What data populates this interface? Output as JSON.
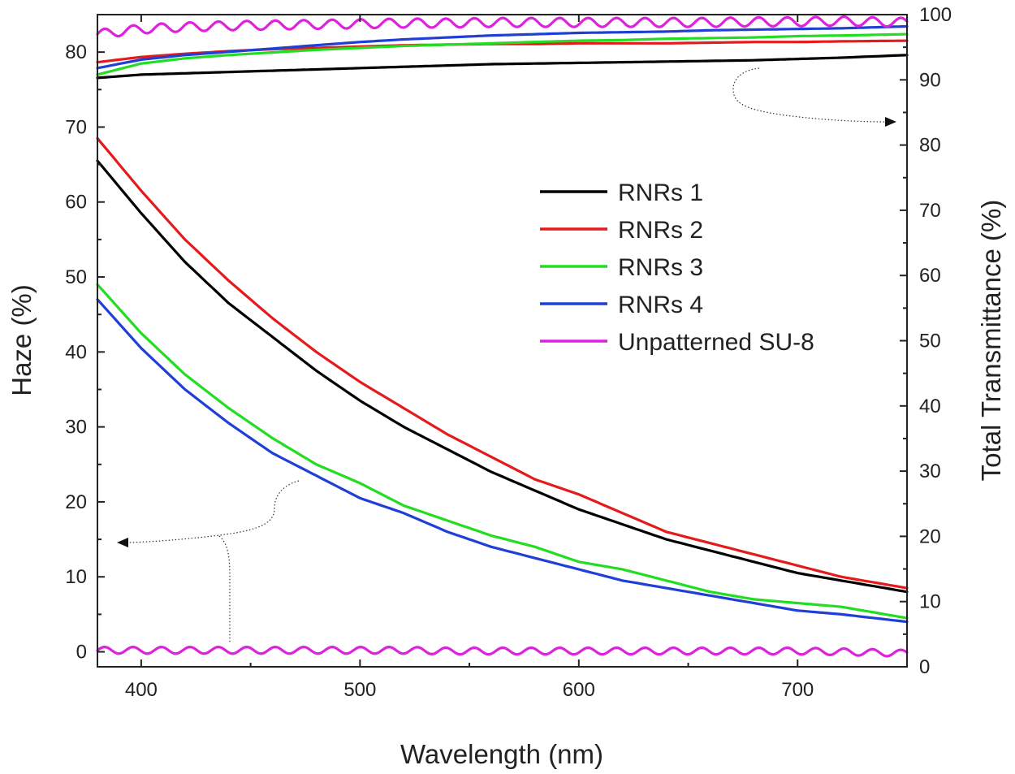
{
  "chart_data": {
    "type": "line",
    "xlabel": "Wavelength (nm)",
    "ylabel": "Haze (%)",
    "y2label": "Total Transmittance (%)",
    "xlim": [
      380,
      750
    ],
    "ylim": [
      -2,
      85
    ],
    "y2lim": [
      0,
      100
    ],
    "xticks": [
      400,
      500,
      600,
      700
    ],
    "yticks": [
      0,
      10,
      20,
      30,
      40,
      50,
      60,
      70,
      80
    ],
    "y2ticks": [
      0,
      10,
      20,
      30,
      40,
      50,
      60,
      70,
      80,
      90,
      100
    ],
    "grid": false,
    "legend_position": "center-right",
    "x": [
      380,
      400,
      420,
      440,
      460,
      480,
      500,
      520,
      540,
      560,
      580,
      600,
      620,
      640,
      660,
      680,
      700,
      720,
      750
    ],
    "haze_series": [
      {
        "name": "RNRs 1",
        "color": "#000000",
        "values": [
          65.5,
          58.5,
          52.0,
          46.5,
          42.0,
          37.5,
          33.5,
          30.0,
          27.0,
          24.0,
          21.5,
          19.0,
          17.0,
          15.0,
          13.5,
          12.0,
          10.5,
          9.5,
          8.0
        ]
      },
      {
        "name": "RNRs 2",
        "color": "#e41a1c",
        "values": [
          68.5,
          61.5,
          55.0,
          49.5,
          44.5,
          40.0,
          36.0,
          32.5,
          29.0,
          26.0,
          23.0,
          21.0,
          18.5,
          16.0,
          14.5,
          13.0,
          11.5,
          10.0,
          8.5
        ]
      },
      {
        "name": "RNRs 3",
        "color": "#22dd22",
        "values": [
          49.0,
          42.5,
          37.0,
          32.5,
          28.5,
          25.0,
          22.5,
          19.5,
          17.5,
          15.5,
          14.0,
          12.0,
          11.0,
          9.5,
          8.0,
          7.0,
          6.5,
          6.0,
          4.5
        ]
      },
      {
        "name": "RNRs 4",
        "color": "#1f3fd6",
        "values": [
          47.0,
          40.5,
          35.0,
          30.5,
          26.5,
          23.5,
          20.5,
          18.5,
          16.0,
          14.0,
          12.5,
          11.0,
          9.5,
          8.5,
          7.5,
          6.5,
          5.5,
          5.0,
          4.0
        ]
      },
      {
        "name": "Unpatterned SU-8",
        "color": "#dd22dd",
        "values": [
          0.2,
          0.2,
          0.2,
          0.2,
          0.2,
          0.2,
          0.2,
          0.2,
          0.1,
          0.1,
          0.1,
          0.1,
          0.1,
          0.1,
          0.1,
          0.1,
          0.1,
          0.0,
          -0.2
        ]
      }
    ],
    "transmittance_series": [
      {
        "name": "RNRs 1",
        "color": "#000000",
        "values": [
          90.3,
          90.8,
          91.0,
          91.2,
          91.4,
          91.6,
          91.8,
          92.0,
          92.2,
          92.4,
          92.5,
          92.6,
          92.7,
          92.8,
          92.9,
          93.0,
          93.2,
          93.4,
          93.8
        ]
      },
      {
        "name": "RNRs 2",
        "color": "#e41a1c",
        "values": [
          92.7,
          93.5,
          94.0,
          94.4,
          94.7,
          94.9,
          95.1,
          95.3,
          95.4,
          95.5,
          95.5,
          95.6,
          95.6,
          95.6,
          95.7,
          95.8,
          95.8,
          95.9,
          96.0
        ]
      },
      {
        "name": "RNRs 3",
        "color": "#22dd22",
        "values": [
          90.8,
          92.5,
          93.3,
          93.8,
          94.2,
          94.6,
          94.9,
          95.2,
          95.4,
          95.6,
          95.8,
          96.0,
          96.1,
          96.3,
          96.4,
          96.5,
          96.7,
          96.8,
          97.0
        ]
      },
      {
        "name": "RNRs 4",
        "color": "#1f3fd6",
        "values": [
          91.8,
          93.1,
          93.8,
          94.3,
          94.8,
          95.3,
          95.8,
          96.2,
          96.5,
          96.8,
          97.0,
          97.2,
          97.3,
          97.4,
          97.6,
          97.7,
          97.8,
          97.9,
          98.2
        ]
      },
      {
        "name": "Unpatterned SU-8",
        "color": "#dd22dd",
        "values": [
          97.0,
          97.8,
          98.1,
          98.3,
          98.4,
          98.5,
          98.6,
          98.7,
          98.7,
          98.8,
          98.8,
          98.8,
          98.8,
          98.8,
          98.8,
          98.9,
          98.9,
          99.0,
          98.8
        ]
      }
    ]
  }
}
